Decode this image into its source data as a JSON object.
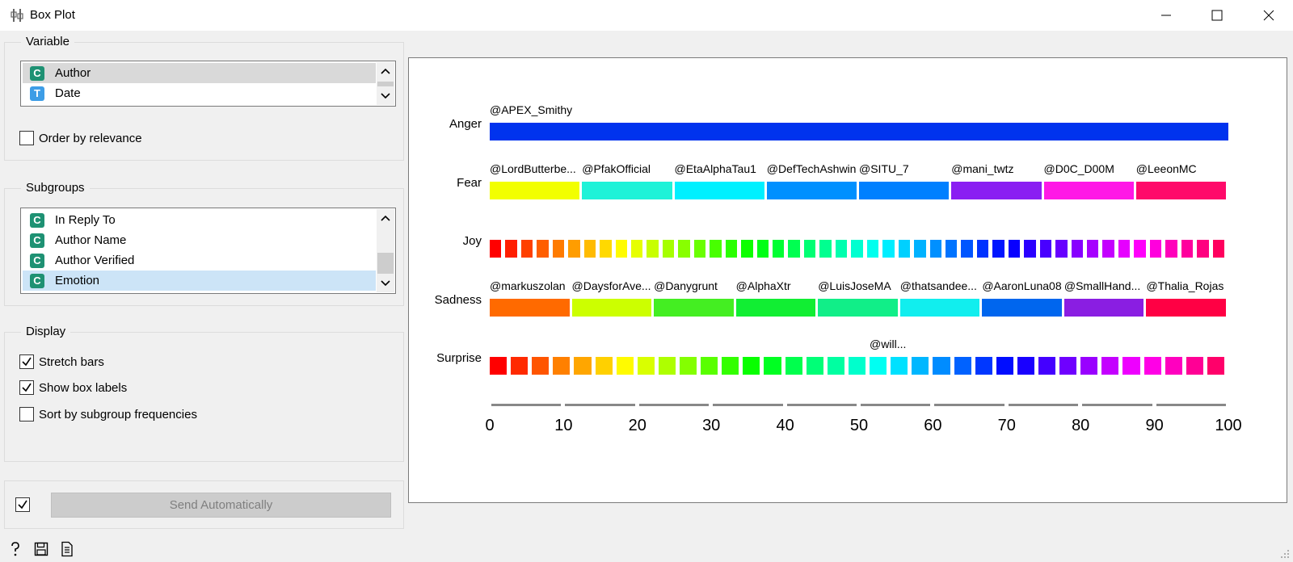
{
  "window": {
    "title": "Box Plot",
    "icons": {
      "app": "box-plot-icon",
      "minimize": "minimize-icon",
      "maximize": "maximize-icon",
      "close": "close-icon"
    }
  },
  "variable_box": {
    "title": "Variable",
    "items": [
      {
        "type": "C",
        "label": "Author",
        "selected": true
      },
      {
        "type": "T",
        "label": "Date",
        "selected": false
      }
    ],
    "order_by_relevance": {
      "label": "Order by relevance",
      "checked": false
    }
  },
  "subgroups_box": {
    "title": "Subgroups",
    "items": [
      {
        "type": "C",
        "label": "In Reply To",
        "selected": false
      },
      {
        "type": "C",
        "label": "Author Name",
        "selected": false
      },
      {
        "type": "C",
        "label": "Author Verified",
        "selected": false
      },
      {
        "type": "C",
        "label": "Emotion",
        "selected": true
      }
    ]
  },
  "display_box": {
    "title": "Display",
    "options": [
      {
        "label": "Stretch bars",
        "checked": true
      },
      {
        "label": "Show box labels",
        "checked": true
      },
      {
        "label": "Sort by subgroup frequencies",
        "checked": false
      }
    ]
  },
  "send": {
    "label": "Send Automatically",
    "auto_checked": true
  },
  "footer_icons": [
    "help-icon",
    "save-icon",
    "report-icon"
  ],
  "colors": {
    "badge_c": "#1e9173",
    "badge_t": "#3d9de6"
  },
  "chart_data": {
    "type": "bar",
    "orientation": "horizontal-stacked-percent",
    "categories": [
      "Anger",
      "Fear",
      "Joy",
      "Sadness",
      "Surprise"
    ],
    "xlim": [
      0,
      100
    ],
    "xticks": [
      0,
      10,
      20,
      30,
      40,
      50,
      60,
      70,
      80,
      90,
      100
    ],
    "rows": [
      {
        "name": "Anger",
        "segments": 1,
        "labels": [
          "@APEX_Smithy"
        ]
      },
      {
        "name": "Fear",
        "segments": 8,
        "labels": [
          "@LordButterbe...",
          "@PfakOfficial",
          "@EtaAlphaTau1",
          "@DefTechAshwin",
          "@SITU_7",
          "@mani_twtz",
          "@D0C_D00M",
          "@LeeonMC"
        ]
      },
      {
        "name": "Joy",
        "segments": 47,
        "labels": []
      },
      {
        "name": "Sadness",
        "segments": 9,
        "labels": [
          "@markuszolan",
          "@DaysforAve...",
          "@Danygrunt",
          "@AlphaXtr",
          "@LuisJoseMA",
          "@thatsandee...",
          "@AaronLuna08",
          "@SmallHand...",
          "@Thalia_Rojas"
        ]
      },
      {
        "name": "Surprise",
        "segments": 35,
        "labels": [
          "@will..."
        ],
        "label_segment": 18
      }
    ]
  }
}
